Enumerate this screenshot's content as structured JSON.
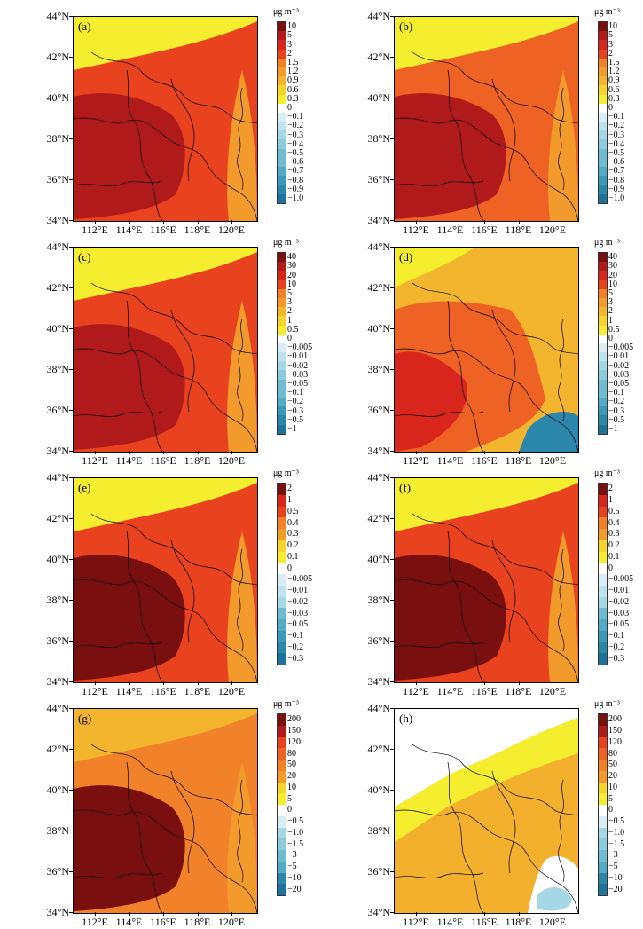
{
  "unit": "μg m⁻³",
  "lat_labels": [
    "44°N",
    "42°N",
    "40°N",
    "38°N",
    "36°N",
    "34°N"
  ],
  "lon_labels": [
    "112°E",
    "114°E",
    "116°E",
    "118°E",
    "120°E"
  ],
  "panels": [
    {
      "label": "(a)",
      "levels": [
        "10",
        "5",
        "3",
        "2",
        "1.5",
        "1.2",
        "0.9",
        "0.6",
        "0.3",
        "0",
        "−0.1",
        "−0.2",
        "−0.3",
        "−0.4",
        "−0.5",
        "−0.6",
        "−0.7",
        "−0.8",
        "−0.9",
        "−1.0"
      ],
      "style": "high"
    },
    {
      "label": "(b)",
      "levels": [
        "10",
        "5",
        "3",
        "2",
        "1.5",
        "1.2",
        "0.9",
        "0.6",
        "0.3",
        "0",
        "−0.1",
        "−0.2",
        "−0.3",
        "−0.4",
        "−0.5",
        "−0.6",
        "−0.7",
        "−0.8",
        "−0.9",
        "−1.0"
      ],
      "style": "mid"
    },
    {
      "label": "(c)",
      "levels": [
        "40",
        "30",
        "20",
        "10",
        "5",
        "3",
        "2",
        "1",
        "0.5",
        "0",
        "−0.005",
        "−0.01",
        "−0.02",
        "−0.03",
        "−0.05",
        "−0.1",
        "−0.2",
        "−0.3",
        "−0.5",
        "−1"
      ],
      "style": "high"
    },
    {
      "label": "(d)",
      "levels": [
        "40",
        "30",
        "20",
        "10",
        "5",
        "3",
        "2",
        "1",
        "0.5",
        "0",
        "−0.005",
        "−0.01",
        "−0.02",
        "−0.03",
        "−0.05",
        "−0.1",
        "−0.2",
        "−0.3",
        "−0.5",
        "−1"
      ],
      "style": "mid_blue"
    },
    {
      "label": "(e)",
      "levels": [
        "2",
        "1",
        "0.5",
        "0.4",
        "0.3",
        "0.2",
        "0.1",
        "0",
        "−0.005",
        "−0.01",
        "−0.02",
        "−0.03",
        "−0.05",
        "−0.1",
        "−0.2",
        "−0.3"
      ],
      "style": "veryhigh"
    },
    {
      "label": "(f)",
      "levels": [
        "2",
        "1",
        "0.5",
        "0.4",
        "0.3",
        "0.2",
        "0.1",
        "0",
        "−0.005",
        "−0.01",
        "−0.02",
        "−0.03",
        "−0.05",
        "−0.1",
        "−0.2",
        "−0.3"
      ],
      "style": "veryhigh"
    },
    {
      "label": "(g)",
      "levels": [
        "200",
        "150",
        "120",
        "80",
        "50",
        "20",
        "10",
        "5",
        "0",
        "−0.5",
        "−1.0",
        "−1.5",
        "−3",
        "−5",
        "−10",
        "−20"
      ],
      "style": "g"
    },
    {
      "label": "(h)",
      "levels": [
        "200",
        "150",
        "120",
        "80",
        "50",
        "20",
        "10",
        "5",
        "0",
        "−0.5",
        "−1.0",
        "−1.5",
        "−3",
        "−5",
        "−10",
        "−20"
      ],
      "style": "h"
    }
  ]
}
